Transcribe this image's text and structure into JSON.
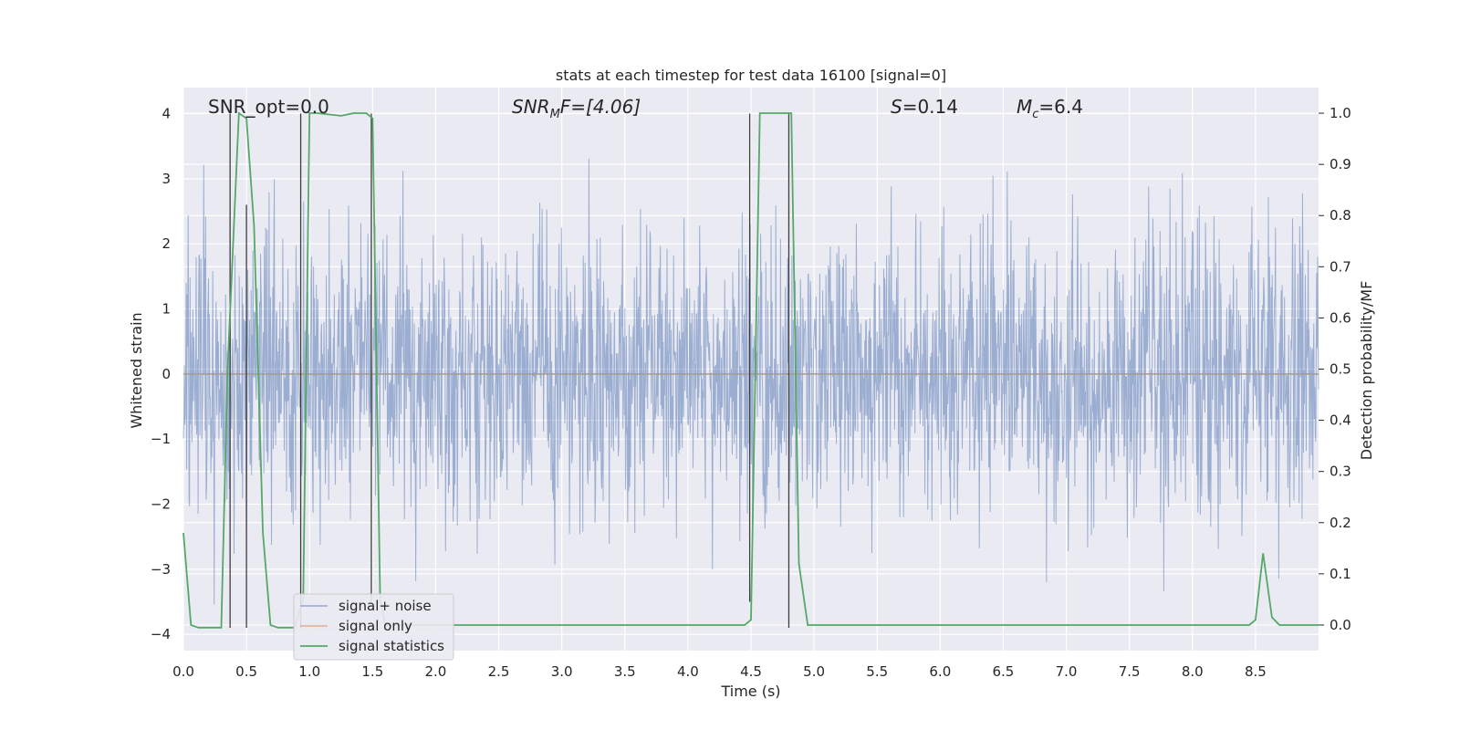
{
  "chart_data": {
    "type": "line",
    "title": "stats at each timestep for test data 16100 [signal=0]",
    "xlabel": "Time (s)",
    "ylabel_left": "Whitened strain",
    "ylabel_right": "Detection probability/MF",
    "xlim": [
      0,
      9.0
    ],
    "ylim_left": [
      -4.25,
      4.4
    ],
    "ylim_right": [
      -0.05,
      1.05
    ],
    "x_ticks": [
      0.0,
      0.5,
      1.0,
      1.5,
      2.0,
      2.5,
      3.0,
      3.5,
      4.0,
      4.5,
      5.0,
      5.5,
      6.0,
      6.5,
      7.0,
      7.5,
      8.0,
      8.5
    ],
    "x_tick_labels": [
      "0.0",
      "0.5",
      "1.0",
      "1.5",
      "2.0",
      "2.5",
      "3.0",
      "3.5",
      "4.0",
      "4.5",
      "5.0",
      "5.5",
      "6.0",
      "6.5",
      "7.0",
      "7.5",
      "8.0",
      "8.5"
    ],
    "y_ticks_left": [
      4,
      3,
      2,
      1,
      0,
      -1,
      -2,
      -3,
      -4
    ],
    "y_tick_labels_left": [
      "4",
      "3",
      "2",
      "1",
      "0",
      "−1",
      "−2",
      "−3",
      "−4"
    ],
    "y_ticks_right": [
      1.0,
      0.9,
      0.8,
      0.7,
      0.6,
      0.5,
      0.4,
      0.3,
      0.2,
      0.1,
      0.0
    ],
    "y_tick_labels_right": [
      "1.0",
      "0.9",
      "0.8",
      "0.7",
      "0.6",
      "0.5",
      "0.4",
      "0.3",
      "0.2",
      "0.1",
      "0.0"
    ],
    "grid": true,
    "legend_position": "lower-left",
    "annotations": {
      "snr_opt": "SNR_opt=0.0",
      "snr_mf_prefix": "SNR",
      "snr_mf_sub": "M",
      "snr_mf_suffix": "F=[4.06]",
      "s_prefix": "S",
      "s_suffix": "=0.14",
      "mc_prefix": "M",
      "mc_sub": "c",
      "mc_suffix": "=6.4"
    },
    "series": [
      {
        "name": "signal+ noise",
        "color": "#4c72b0",
        "description": "whitened strain noise, approx. Gaussian, std ~1, duration 9 s"
      },
      {
        "name": "signal only",
        "color": "#dd8452",
        "x": [
          0,
          9.0
        ],
        "y": [
          0,
          0
        ]
      },
      {
        "name": "signal statistics",
        "color": "#55a868",
        "axis": "right",
        "x": [
          0.0,
          0.06,
          0.12,
          0.25,
          0.3,
          0.35,
          0.44,
          0.5,
          0.56,
          0.63,
          0.69,
          0.75,
          0.82,
          0.88,
          0.95,
          1.0,
          1.06,
          1.25,
          1.35,
          1.45,
          1.5,
          1.56,
          1.6,
          2.0,
          3.0,
          4.0,
          4.45,
          4.5,
          4.57,
          4.75,
          4.82,
          4.88,
          4.95,
          5.5,
          6.0,
          7.0,
          8.0,
          8.45,
          8.5,
          8.56,
          8.63,
          8.69,
          8.75,
          9.0
        ],
        "y": [
          0.18,
          0.0,
          -0.005,
          -0.005,
          -0.005,
          0.5,
          1.0,
          0.99,
          0.78,
          0.18,
          0.0,
          -0.005,
          -0.005,
          -0.005,
          0.05,
          1.0,
          1.0,
          0.995,
          1.0,
          1.0,
          0.99,
          0.05,
          0.0,
          0.0,
          0.0,
          0.0,
          0.0,
          0.01,
          1.0,
          1.0,
          1.0,
          0.12,
          0.0,
          0.0,
          0.0,
          0.0,
          0.0,
          0.0,
          0.01,
          0.14,
          0.015,
          0.0,
          0.0,
          0.0
        ]
      }
    ],
    "vertical_markers": [
      {
        "x": 0.37,
        "top": 4.0,
        "bottom": -3.9
      },
      {
        "x": 0.5,
        "top": 2.6,
        "bottom": -3.9
      },
      {
        "x": 0.93,
        "top": 4.0,
        "bottom": -3.9
      },
      {
        "x": 1.49,
        "top": 4.0,
        "bottom": -3.5
      },
      {
        "x": 4.49,
        "top": 4.0,
        "bottom": -3.5
      },
      {
        "x": 4.8,
        "top": 4.0,
        "bottom": -3.9
      }
    ]
  }
}
